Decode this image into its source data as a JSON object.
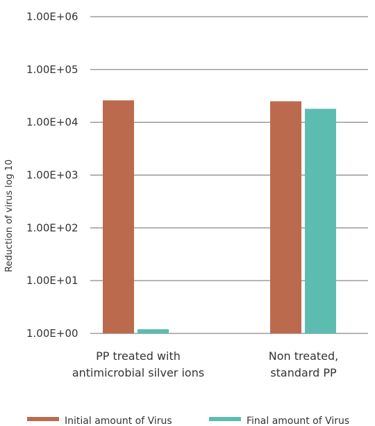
{
  "chart_data": {
    "type": "bar",
    "ylabel": "Reduction of virus log 10",
    "yscale": "log",
    "ylim": [
      1,
      1000000
    ],
    "yticks": [
      1,
      10,
      100,
      1000,
      10000,
      100000,
      1000000
    ],
    "ytick_labels": [
      "1.00E+00",
      "1.00E+01",
      "1.00E+02",
      "1.00E+03",
      "1.00E+04",
      "1.00E+05",
      "1.00E+06"
    ],
    "categories": [
      [
        "PP treated with",
        "antimicrobial silver ions"
      ],
      [
        "Non treated,",
        "standard PP"
      ]
    ],
    "series": [
      {
        "name": "Initial amount of Virus",
        "color": "#bb6a4e",
        "values": [
          26000,
          25000
        ]
      },
      {
        "name": "Final amount of Virus",
        "color": "#5dbcb0",
        "values": [
          1.2,
          18000
        ]
      }
    ],
    "grid": "horizontal",
    "legend": "bottom"
  }
}
